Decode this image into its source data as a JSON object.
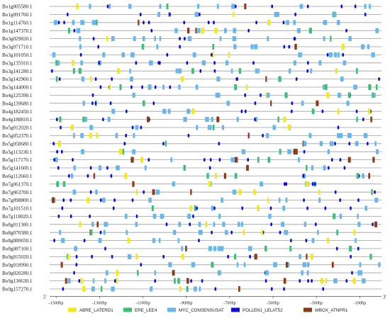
{
  "genes": [
    "Bo1g005580.1",
    "Bo1g091760.1",
    "Bo1g114760.1",
    "Bo1g147370.1",
    "Bo3g029820.1",
    "Bo3g071710.1",
    "Bo3g101050.1",
    "Bo3g135910.1",
    "Bo3g141280.1",
    "Bo3g142960.1",
    "Bo3g144000.1",
    "Bo4g125390.1",
    "Bo4g139680.1",
    "Bo4g182450.1",
    "Bo4g188810.1",
    "Bo5g012020.1",
    "Bo5g052370.1",
    "Bo5g058680.1",
    "Bo5g113230.1",
    "Bo5g117170.1",
    "Bo5g141600.1",
    "Bo6g112660.1",
    "Bo7g061370.1",
    "Bo7g063700.1",
    "Bo7g098800.1",
    "Bo7g101510.1",
    "Bo7g118020.1",
    "Bo8g011300.1",
    "Bo8g070380.1",
    "Bo8g080650.1",
    "Bo8g087100.1",
    "Bo9g015020.1",
    "Bo9g018990.1",
    "Bo9g020280.1",
    "Bo9g130630.1",
    "Bo9g157270.1"
  ],
  "axis": {
    "left_end": "5'",
    "right_end": "3'",
    "ticks": [
      "-1500bp",
      "-1300bp",
      "-1100bp",
      "-900bp",
      "-700bp",
      "-500bp",
      "-300bp",
      "-100bp"
    ],
    "tick_values": [
      -1500,
      -1300,
      -1100,
      -900,
      -700,
      -500,
      -300,
      -100
    ],
    "range": [
      -1530,
      0
    ]
  },
  "legend": [
    {
      "key": "ABRE",
      "label": "ABRE_LATERD1",
      "color": "#f2e81e"
    },
    {
      "key": "ERE",
      "label": "ERE_LEE4",
      "color": "#3dbd78"
    },
    {
      "key": "MYC",
      "label": "MYC_CONSENSUSAT",
      "color": "#6bb6e6"
    },
    {
      "key": "POLLEN",
      "label": "POLLEN1_LELAT52",
      "color": "#1010c8"
    },
    {
      "key": "WBOX",
      "label": "WBOX_ATNPR1",
      "color": "#8b3a1a"
    }
  ]
}
